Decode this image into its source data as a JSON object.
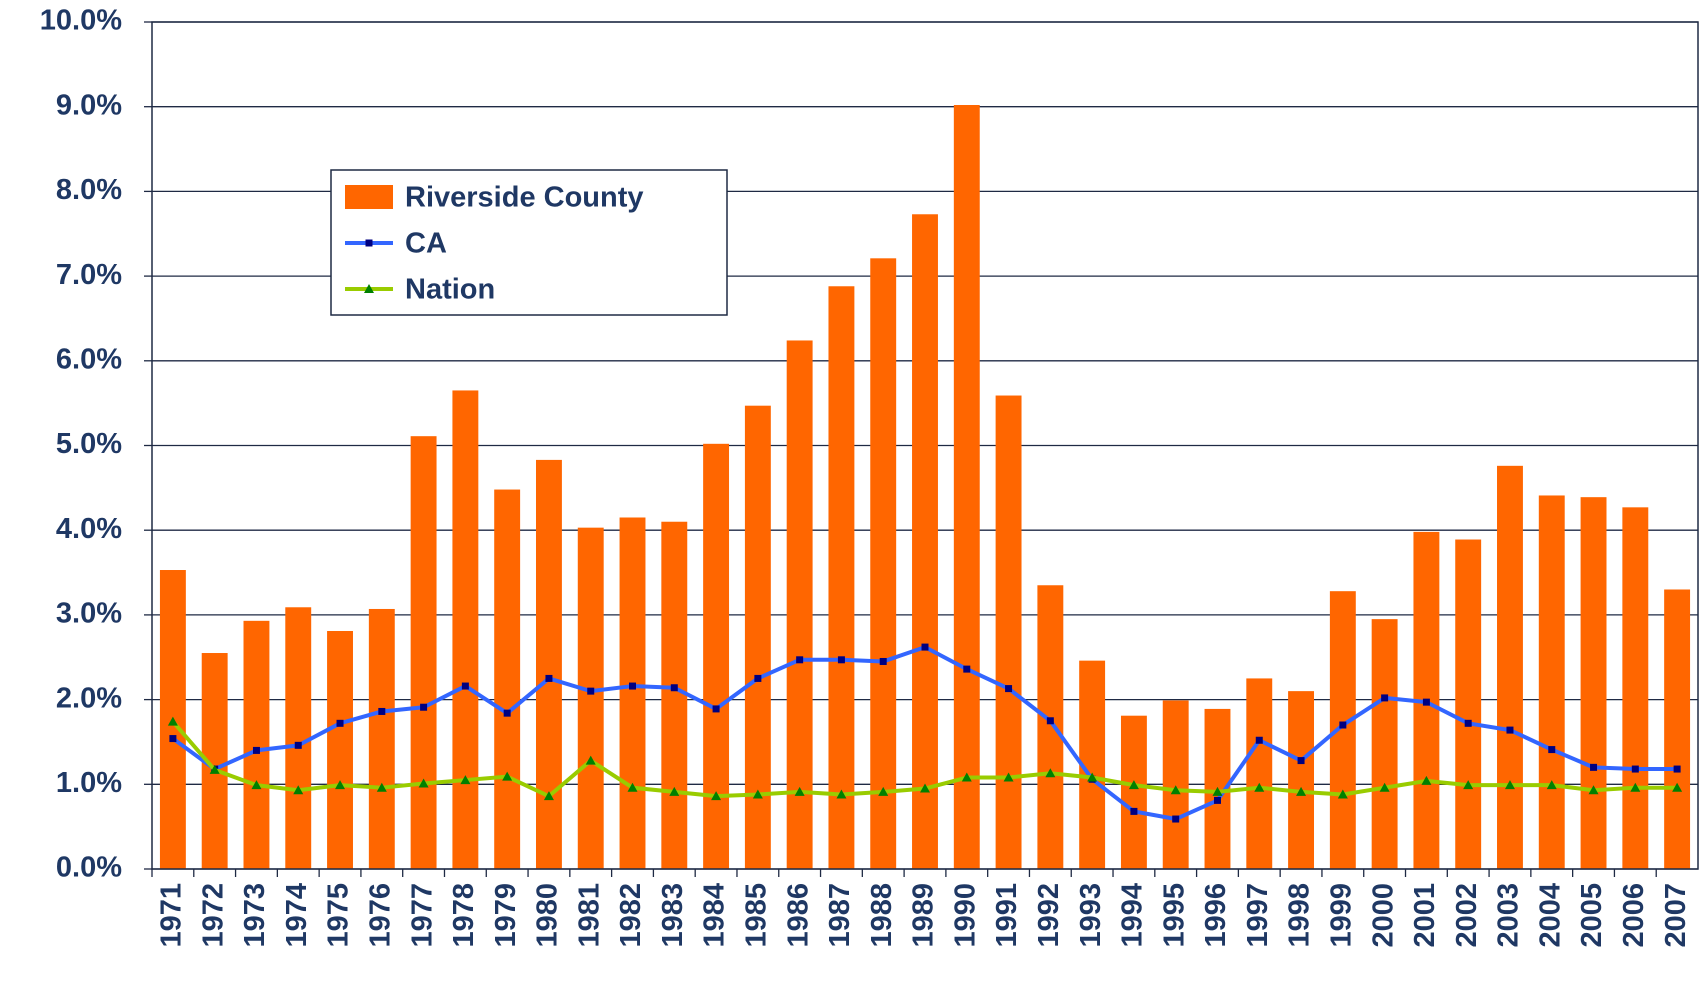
{
  "chart_data": {
    "type": "combo",
    "categories": [
      "1971",
      "1972",
      "1973",
      "1974",
      "1975",
      "1976",
      "1977",
      "1978",
      "1979",
      "1980",
      "1981",
      "1982",
      "1983",
      "1984",
      "1985",
      "1986",
      "1987",
      "1988",
      "1989",
      "1990",
      "1991",
      "1992",
      "1993",
      "1994",
      "1995",
      "1996",
      "1997",
      "1998",
      "1999",
      "2000",
      "2001",
      "2002",
      "2003",
      "2004",
      "2005",
      "2006",
      "2007"
    ],
    "series": [
      {
        "name": "Riverside County",
        "type": "bar",
        "color": "#ff6600",
        "values": [
          3.53,
          2.55,
          2.93,
          3.09,
          2.81,
          3.07,
          5.11,
          5.65,
          4.48,
          4.83,
          4.03,
          4.15,
          4.1,
          5.02,
          5.47,
          6.24,
          6.88,
          7.21,
          7.73,
          9.02,
          5.59,
          3.35,
          2.46,
          1.81,
          1.99,
          1.89,
          2.25,
          2.1,
          3.28,
          2.95,
          3.98,
          3.89,
          4.76,
          4.41,
          4.39,
          4.27,
          3.3
        ]
      },
      {
        "name": "CA",
        "type": "line",
        "color": "#3366ff",
        "marker": "square",
        "marker_color": "#000080",
        "values": [
          1.54,
          1.18,
          1.4,
          1.46,
          1.72,
          1.86,
          1.91,
          2.16,
          1.84,
          2.25,
          2.1,
          2.16,
          2.14,
          1.89,
          2.25,
          2.47,
          2.47,
          2.45,
          2.62,
          2.36,
          2.13,
          1.75,
          1.06,
          0.68,
          0.59,
          0.81,
          1.52,
          1.28,
          1.7,
          2.02,
          1.97,
          1.72,
          1.64,
          1.41,
          1.2,
          1.18,
          1.18
        ]
      },
      {
        "name": "Nation",
        "type": "line",
        "color": "#99cc00",
        "marker": "triangle",
        "marker_color": "#008000",
        "values": [
          1.74,
          1.17,
          0.99,
          0.93,
          0.99,
          0.96,
          1.01,
          1.05,
          1.09,
          0.86,
          1.28,
          0.96,
          0.91,
          0.86,
          0.88,
          0.91,
          0.88,
          0.91,
          0.95,
          1.08,
          1.08,
          1.13,
          1.08,
          0.99,
          0.93,
          0.91,
          0.96,
          0.91,
          0.88,
          0.96,
          1.04,
          0.99,
          0.99,
          0.99,
          0.93,
          0.96,
          0.96
        ]
      }
    ],
    "ylim": [
      0,
      10
    ],
    "yticks": [
      {
        "value": 0,
        "label": "0.0%"
      },
      {
        "value": 1,
        "label": "1.0%"
      },
      {
        "value": 2,
        "label": "2.0%"
      },
      {
        "value": 3,
        "label": "3.0%"
      },
      {
        "value": 4,
        "label": "4.0%"
      },
      {
        "value": 5,
        "label": "5.0%"
      },
      {
        "value": 6,
        "label": "6.0%"
      },
      {
        "value": 7,
        "label": "7.0%"
      },
      {
        "value": 8,
        "label": "8.0%"
      },
      {
        "value": 9,
        "label": "9.0%"
      },
      {
        "value": 10,
        "label": "10.0%"
      }
    ],
    "grid": true,
    "legend": "upper-left"
  }
}
